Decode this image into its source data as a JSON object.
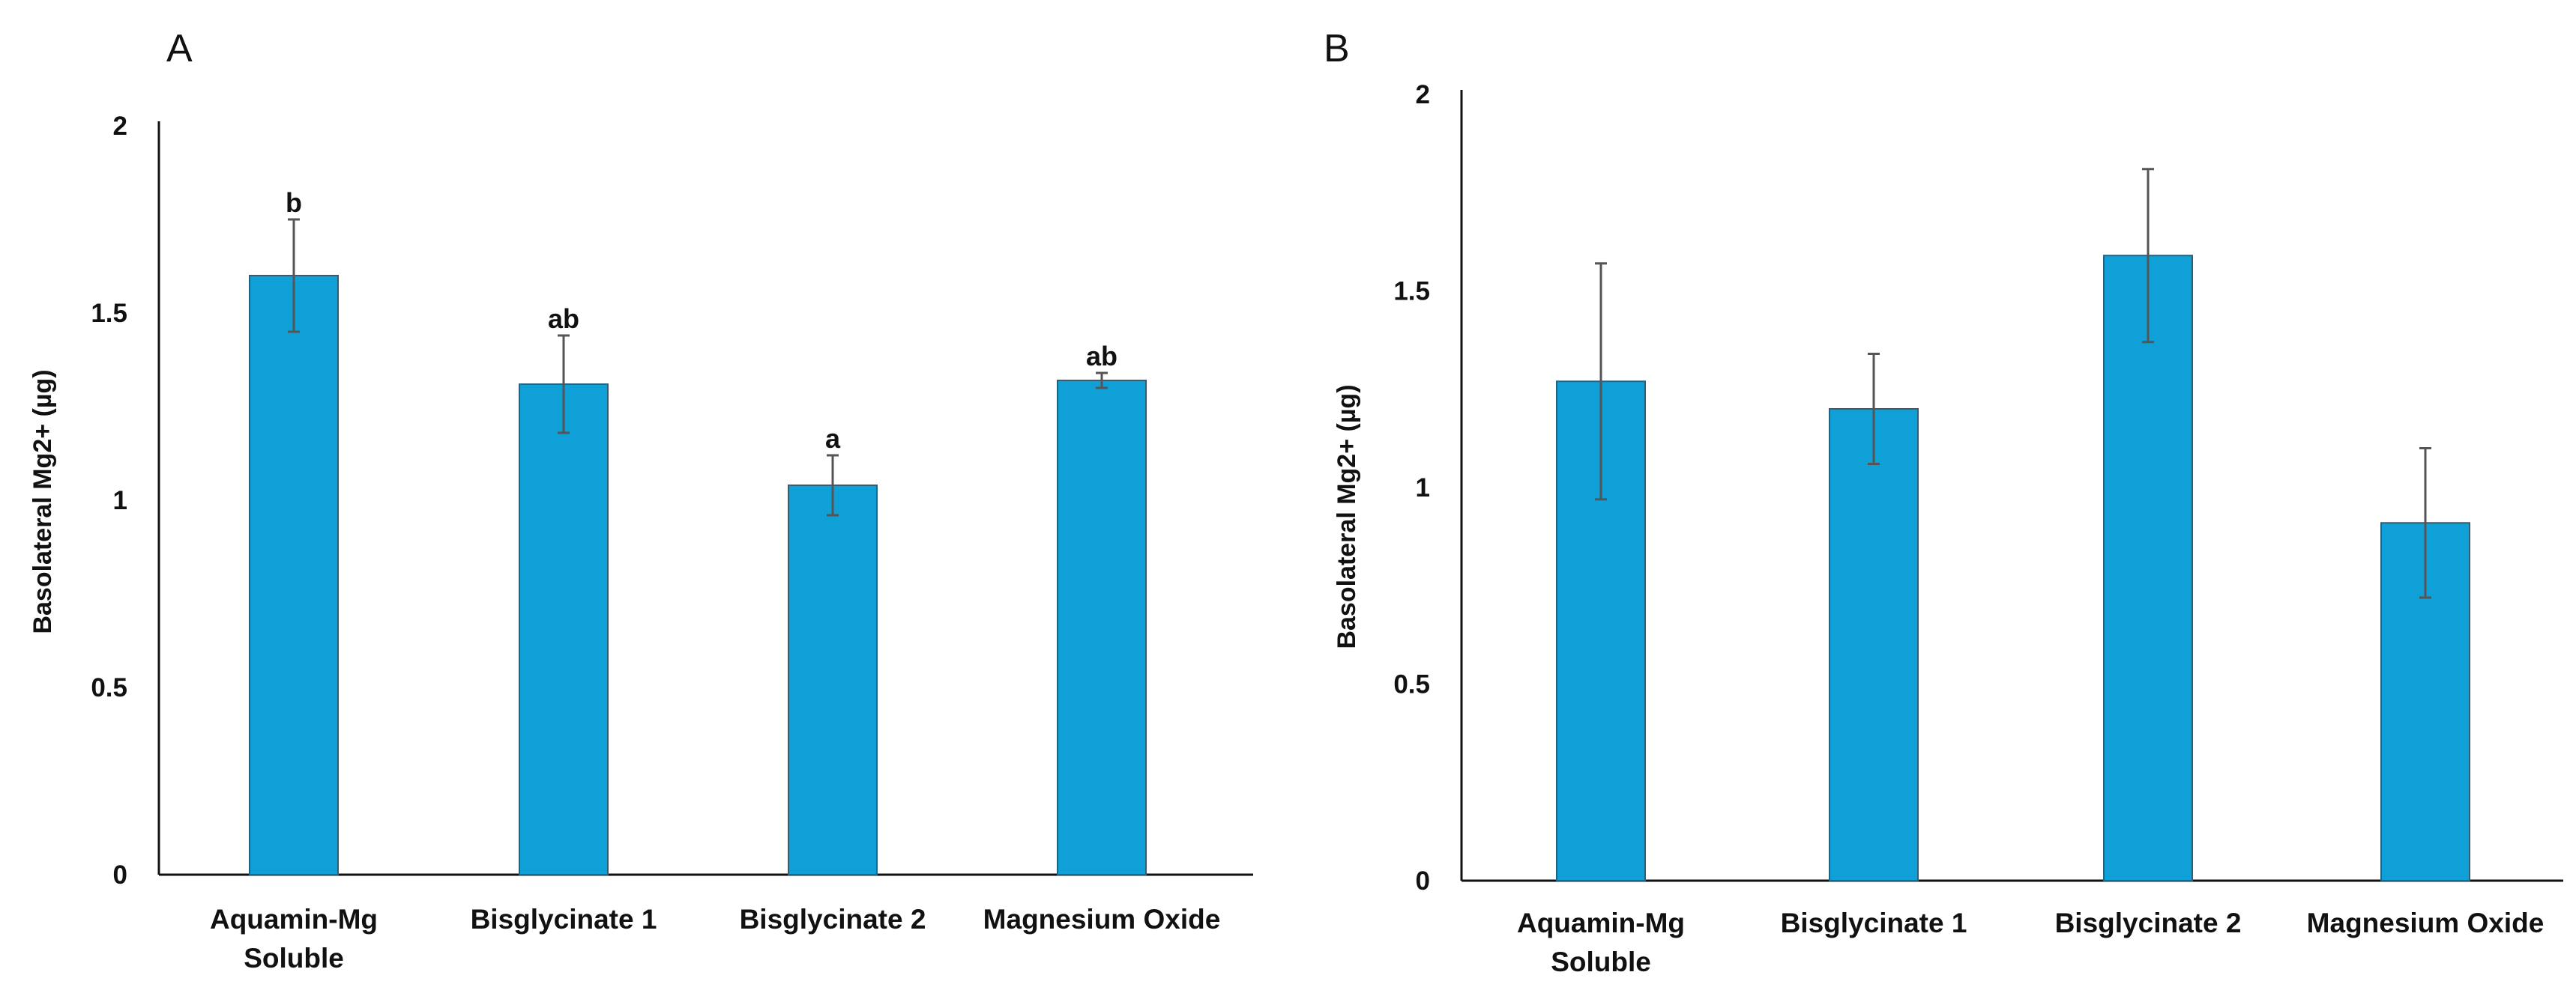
{
  "colors": {
    "bar": "#0ea0d6",
    "bar_edge": "#2b5f7a",
    "axis": "#111111",
    "error": "#555555"
  },
  "chart_data": [
    {
      "panel": "A",
      "type": "bar",
      "ylabel": "Basolateral Mg2+ (µg)",
      "ylim": [
        0,
        2
      ],
      "yticks": [
        0,
        0.5,
        1,
        1.5,
        2
      ],
      "ytick_labels": [
        "0",
        "0.5",
        "1",
        "1.5",
        "2"
      ],
      "categories": [
        [
          "Aquamin-Mg",
          "Soluble"
        ],
        [
          "Bisglycinate 1"
        ],
        [
          "Bisglycinate 2"
        ],
        [
          "Magnesium Oxide"
        ]
      ],
      "values": [
        1.6,
        1.31,
        1.04,
        1.32
      ],
      "errors": [
        0.15,
        0.13,
        0.08,
        0.02
      ],
      "significance": [
        "b",
        "ab",
        "a",
        "ab"
      ]
    },
    {
      "panel": "B",
      "type": "bar",
      "ylabel": "Basolateral Mg2+ (µg)",
      "ylim": [
        0,
        2
      ],
      "yticks": [
        0,
        0.5,
        1,
        1.5,
        2
      ],
      "ytick_labels": [
        "0",
        "0.5",
        "1",
        "1.5",
        "2"
      ],
      "categories": [
        [
          "Aquamin-Mg",
          "Soluble"
        ],
        [
          "Bisglycinate 1"
        ],
        [
          "Bisglycinate 2"
        ],
        [
          "Magnesium Oxide"
        ]
      ],
      "values": [
        1.27,
        1.2,
        1.59,
        0.91
      ],
      "errors": [
        0.3,
        0.14,
        0.22,
        0.19
      ],
      "significance": [
        "",
        "",
        "",
        ""
      ]
    }
  ]
}
